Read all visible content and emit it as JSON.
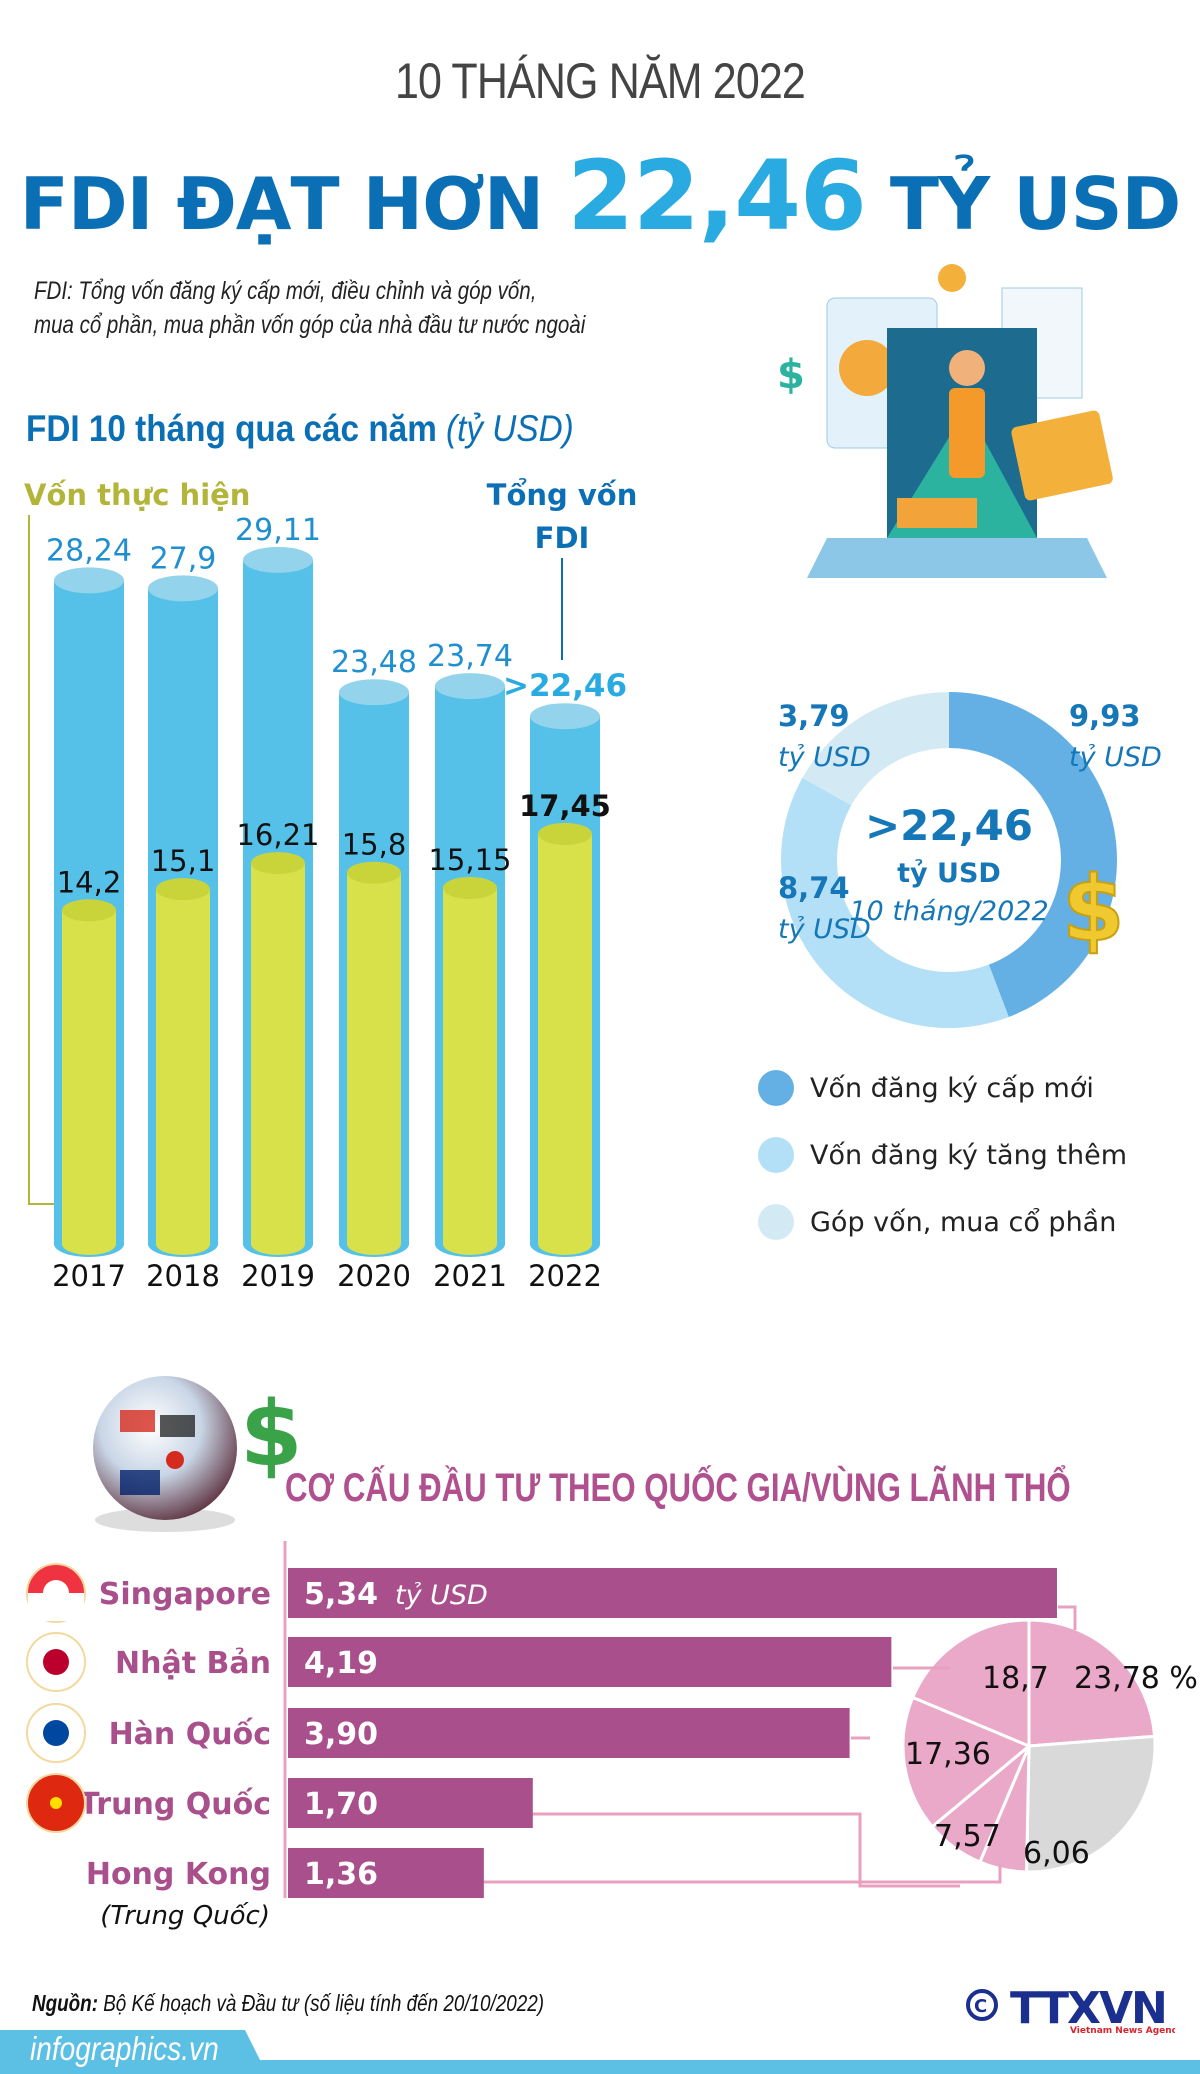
{
  "header": {
    "kicker": "10 THÁNG NĂM 2022",
    "headline_pre": "FDI ĐẠT HƠN ",
    "headline_num": "22,46",
    "headline_post": " TỶ USD",
    "desc_line1": "FDI: Tổng vốn đăng ký cấp mới, điều chỉnh và góp vốn,",
    "desc_line2": "mua cổ phần, mua phần vốn góp của nhà đầu tư nước ngoài"
  },
  "section1": {
    "title": "FDI 10 tháng qua các năm",
    "unit": "(tỷ USD)"
  },
  "section2": {
    "title": "CƠ CẤU ĐẦU TƯ THEO QUỐC GIA/VÙNG LÃNH THỔ"
  },
  "colors": {
    "title_blue": "#0b6fb5",
    "accent_blue": "#29abe2",
    "cyl_blue": "#55c1e8",
    "cyl_yellow": "#d8e04a",
    "olive": "#b3b53a",
    "magenta": "#a94f8c",
    "pink": "#eaa9c8",
    "gray": "#d9d9d9",
    "donut_new": "#64b0e4",
    "donut_add": "#b3e0f7",
    "donut_share": "#d3eaf5"
  },
  "chart_data": [
    {
      "type": "bar",
      "categories": [
        "2017",
        "2018",
        "2019",
        "2020",
        "2021",
        "2022"
      ],
      "series": [
        {
          "name": "Tổng vốn FDI",
          "values": [
            28.24,
            27.9,
            29.11,
            23.48,
            23.74,
            22.46
          ],
          "labels": [
            "28,24",
            "27,9",
            "29,11",
            "23,48",
            "23,74",
            ">22,46"
          ]
        },
        {
          "name": "Vốn thực hiện",
          "values": [
            14.2,
            15.1,
            16.21,
            15.8,
            15.15,
            17.45
          ],
          "labels": [
            "14,2",
            "15,1",
            "16,21",
            "15,8",
            "15,15",
            "17,45"
          ]
        }
      ],
      "label_total_line1": "Tổng vốn",
      "label_total_line2": "FDI",
      "ylim": [
        0,
        30
      ]
    },
    {
      "type": "pie",
      "donut": true,
      "center_value": ">22,46",
      "center_unit": "tỷ USD",
      "center_period": "10 tháng/2022",
      "slices": [
        {
          "name": "Vốn đăng ký cấp mới",
          "value": 9.93,
          "label": "9,93",
          "unit": "tỷ USD"
        },
        {
          "name": "Vốn đăng ký tăng thêm",
          "value": 8.74,
          "label": "8,74",
          "unit": "tỷ USD"
        },
        {
          "name": "Góp vốn, mua cổ phần",
          "value": 3.79,
          "label": "3,79",
          "unit": "tỷ USD"
        }
      ],
      "legend": "bottom"
    },
    {
      "type": "bar",
      "orientation": "horizontal",
      "categories": [
        "Singapore",
        "Nhật Bản",
        "Hàn Quốc",
        "Trung Quốc",
        "Hong Kong"
      ],
      "category_note": "(Trung Quốc)",
      "values": [
        5.34,
        4.19,
        3.9,
        1.7,
        1.36
      ],
      "labels": [
        "5,34",
        "4,19",
        "3,90",
        "1,70",
        "1,36"
      ],
      "unit": "tỷ USD"
    },
    {
      "type": "pie",
      "unit": "%",
      "slices": [
        {
          "category": "Singapore",
          "value": 23.78,
          "label": "23,78 %"
        },
        {
          "category": "Other",
          "value": 26.53,
          "label": ""
        },
        {
          "category": "Hong Kong",
          "value": 6.06,
          "label": "6,06"
        },
        {
          "category": "Trung Quốc",
          "value": 7.57,
          "label": "7,57"
        },
        {
          "category": "Hàn Quốc",
          "value": 17.36,
          "label": "17,36"
        },
        {
          "category": "Nhật Bản",
          "value": 18.7,
          "label": "18,7"
        }
      ]
    }
  ],
  "footer": {
    "source_label": "Nguồn:",
    "source_text": " Bộ Kế hoạch và Đầu tư (số liệu tính đến 20/10/2022)",
    "site": "infographics.vn",
    "logo_text": "TTXVN",
    "logo_sub": "Vietnam News Agency",
    "copyright": "©"
  }
}
